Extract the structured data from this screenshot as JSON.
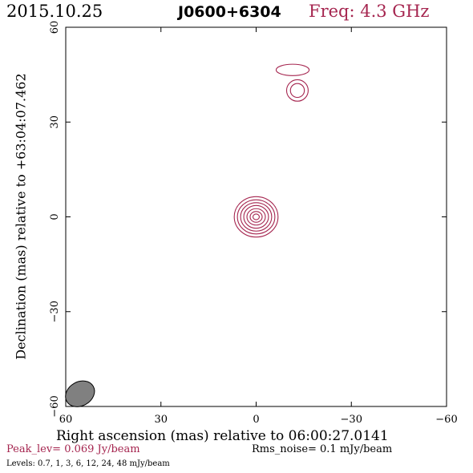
{
  "header": {
    "date": "2015.10.25",
    "source": "J0600+6304",
    "freq": "Freq: 4.3 GHz"
  },
  "footer": {
    "xlabel": "Right ascension (mas) relative to 06:00:27.0141",
    "peak": "Peak_lev=  0.069 Jy/beam",
    "rms": "Rms_noise=   0.1 mJy/beam",
    "levels": "Levels: 0.7,    1,    3,    6,   12,   24,   48 mJy/beam"
  },
  "colors": {
    "contour": "#a5254f",
    "beam": "#808080",
    "axes": "#000000"
  },
  "chart_data": {
    "type": "contour",
    "xlabel": "Right ascension (mas) relative to 06:00:27.0141",
    "ylabel": "Declination (mas) relative to +63:04:07.462",
    "xlim": [
      60,
      -60
    ],
    "ylim": [
      -60,
      60
    ],
    "xticks": [
      60,
      30,
      0,
      -30,
      -60
    ],
    "yticks": [
      -60,
      -30,
      0,
      30,
      60
    ],
    "xtick_labels": [
      "60",
      "30",
      "0",
      "−30",
      "−60"
    ],
    "ytick_labels": [
      "−60",
      "−30",
      "0",
      "30",
      "60"
    ],
    "contour_levels_mJy": [
      0.7,
      1,
      3,
      6,
      12,
      24,
      48
    ],
    "components": [
      {
        "x": 0,
        "y": 0,
        "levels_drawn": 7,
        "radii_x": [
          6.9,
          5.9,
          4.9,
          3.9,
          2.9,
          1.9,
          1.0
        ],
        "radii_y": [
          6.4,
          5.4,
          4.5,
          3.6,
          2.6,
          1.7,
          0.9
        ]
      },
      {
        "x": -13,
        "y": 40,
        "levels_drawn": 2,
        "radii_x": [
          3.4,
          2.2
        ],
        "radii_y": [
          3.4,
          2.2
        ]
      },
      {
        "x": -11.5,
        "y": 46.5,
        "levels_drawn": 1,
        "radii_x": [
          5.2
        ],
        "radii_y": [
          1.8
        ]
      }
    ],
    "beam": {
      "x": 55.5,
      "y": -56,
      "major": 4.8,
      "minor": 3.8,
      "pa_deg": 30
    }
  }
}
